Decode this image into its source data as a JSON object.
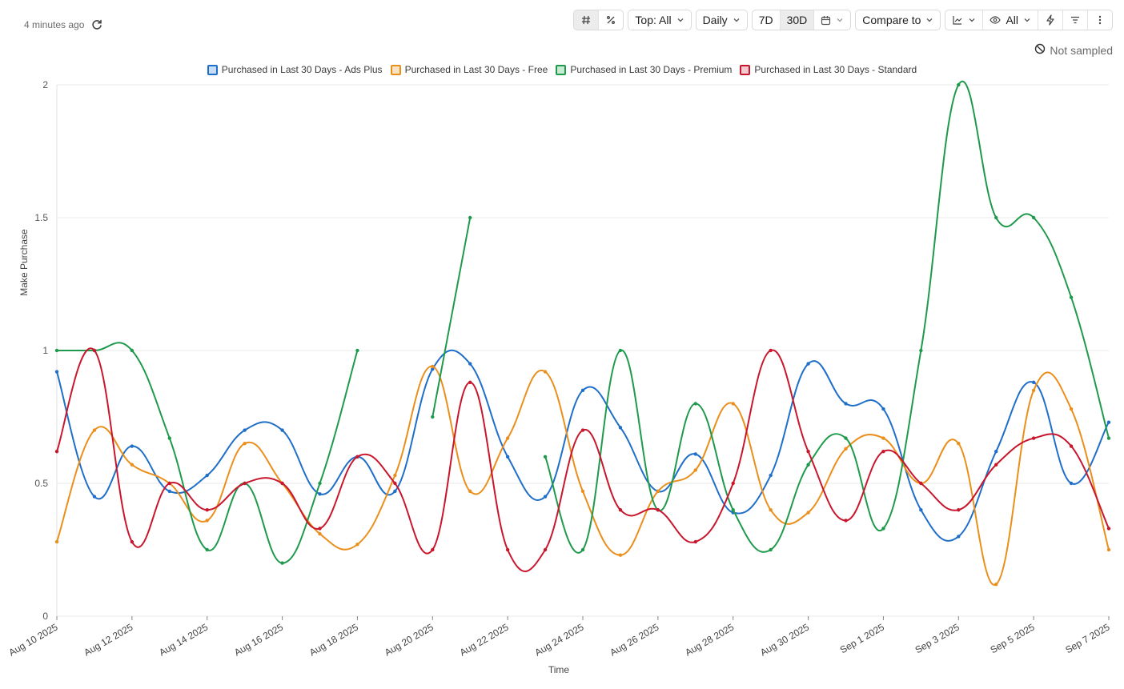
{
  "status": {
    "updated_text": "4 minutes ago",
    "refresh_icon": "refresh-icon"
  },
  "toolbar": {
    "hash_icon": "hash-icon",
    "percent_icon": "percent-icon",
    "top_label": "Top: All",
    "interval_label": "Daily",
    "range_7d": "7D",
    "range_30d": "30D",
    "calendar_icon": "calendar-icon",
    "compare_label": "Compare to",
    "chart_type_icon": "line-chart-icon",
    "visibility_label": "All",
    "eye_icon": "eye-icon",
    "lightning_icon": "lightning-icon",
    "filter_icon": "filter-icon",
    "more_icon": "more-vertical-icon"
  },
  "sampling": {
    "label": "Not sampled",
    "icon": "not-sampled-icon"
  },
  "chart_data": {
    "type": "line",
    "xlabel": "Time",
    "ylabel": "Make Purchase",
    "ylim": [
      0,
      2
    ],
    "yticks": [
      0,
      0.5,
      1,
      1.5,
      2
    ],
    "ytick_labels": [
      "0",
      "0.5",
      "1",
      "1.5",
      "2"
    ],
    "grid": true,
    "legend_position": "top",
    "x": [
      "Aug 10 2025",
      "Aug 11 2025",
      "Aug 12 2025",
      "Aug 13 2025",
      "Aug 14 2025",
      "Aug 15 2025",
      "Aug 16 2025",
      "Aug 17 2025",
      "Aug 18 2025",
      "Aug 19 2025",
      "Aug 20 2025",
      "Aug 21 2025",
      "Aug 22 2025",
      "Aug 23 2025",
      "Aug 24 2025",
      "Aug 25 2025",
      "Aug 26 2025",
      "Aug 27 2025",
      "Aug 28 2025",
      "Aug 29 2025",
      "Aug 30 2025",
      "Aug 31 2025",
      "Sep 1 2025",
      "Sep 2 2025",
      "Sep 3 2025",
      "Sep 4 2025",
      "Sep 5 2025",
      "Sep 6 2025",
      "Sep 7 2025"
    ],
    "xtick_labels": [
      "Aug 10 2025",
      "Aug 12 2025",
      "Aug 14 2025",
      "Aug 16 2025",
      "Aug 18 2025",
      "Aug 20 2025",
      "Aug 22 2025",
      "Aug 24 2025",
      "Aug 26 2025",
      "Aug 28 2025",
      "Aug 30 2025",
      "Sep 1 2025",
      "Sep 3 2025",
      "Sep 5 2025",
      "Sep 7 2025"
    ],
    "series": [
      {
        "name": "Purchased in Last 30 Days - Ads Plus",
        "color": "#1f6fc9",
        "fill": "#c9dcf5",
        "values": [
          0.92,
          0.45,
          0.64,
          0.47,
          0.53,
          0.7,
          0.7,
          0.46,
          0.6,
          0.47,
          0.93,
          0.95,
          0.6,
          0.45,
          0.85,
          0.71,
          0.47,
          0.61,
          0.39,
          0.53,
          0.95,
          0.8,
          0.78,
          0.4,
          0.3,
          0.62,
          0.88,
          0.5,
          0.73
        ]
      },
      {
        "name": "Purchased in Last 30 Days - Free",
        "color": "#ea8f1c",
        "fill": "#fbe3c2",
        "values": [
          0.28,
          0.7,
          0.57,
          0.5,
          0.36,
          0.65,
          0.5,
          0.31,
          0.27,
          0.53,
          0.94,
          0.47,
          0.67,
          0.92,
          0.47,
          0.23,
          0.47,
          0.55,
          0.8,
          0.4,
          0.39,
          0.63,
          0.67,
          0.5,
          0.65,
          0.12,
          0.85,
          0.78,
          0.25
        ]
      },
      {
        "name": "Purchased in Last 30 Days - Premium",
        "color": "#1f9a4c",
        "fill": "#c6ebd2",
        "values": [
          1.0,
          1.0,
          1.0,
          0.67,
          0.25,
          0.5,
          0.2,
          0.5,
          1.0,
          null,
          0.75,
          1.5,
          null,
          0.6,
          0.25,
          1.0,
          0.4,
          0.8,
          0.4,
          0.25,
          0.57,
          0.67,
          0.33,
          1.0,
          2.0,
          1.5,
          1.5,
          1.2,
          0.67
        ]
      },
      {
        "name": "Purchased in Last 30 Days - Standard",
        "color": "#c8172d",
        "fill": "#f6c8cf",
        "values": [
          0.62,
          1.0,
          0.28,
          0.5,
          0.4,
          0.5,
          0.5,
          0.33,
          0.6,
          0.5,
          0.25,
          0.88,
          0.25,
          0.25,
          0.7,
          0.4,
          0.4,
          0.28,
          0.5,
          1.0,
          0.62,
          0.36,
          0.62,
          0.5,
          0.4,
          0.57,
          0.67,
          0.64,
          0.33
        ]
      }
    ]
  }
}
